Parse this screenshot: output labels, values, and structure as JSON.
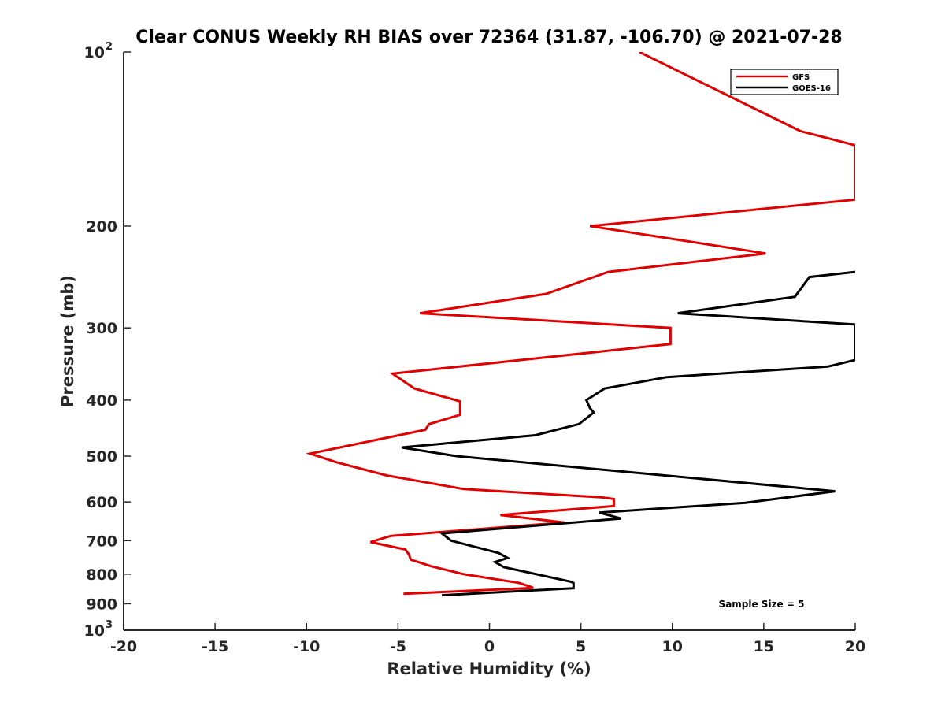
{
  "chart_data": {
    "type": "line",
    "title": "Clear CONUS Weekly RH BIAS over 72364 (31.87, -106.70) @ 2021-07-28",
    "xlabel": "Relative Humidity (%)",
    "ylabel": "Pressure (mb)",
    "xlim": [
      -20,
      20
    ],
    "ylim": [
      100,
      1000
    ],
    "y_scale": "log",
    "y_reversed": true,
    "grid": false,
    "legend_position": "top-right",
    "x_ticks": [
      "-20",
      "-15",
      "-10",
      "-5",
      "0",
      "5",
      "10",
      "15",
      "20"
    ],
    "y_ticks": [
      {
        "value": 100,
        "label": "10",
        "sup": "2"
      },
      {
        "value": 200,
        "label": "200",
        "sup": ""
      },
      {
        "value": 300,
        "label": "300",
        "sup": ""
      },
      {
        "value": 400,
        "label": "400",
        "sup": ""
      },
      {
        "value": 500,
        "label": "500",
        "sup": ""
      },
      {
        "value": 600,
        "label": "600",
        "sup": ""
      },
      {
        "value": 700,
        "label": "700",
        "sup": ""
      },
      {
        "value": 800,
        "label": "800",
        "sup": ""
      },
      {
        "value": 900,
        "label": "900",
        "sup": ""
      },
      {
        "value": 1000,
        "label": "10",
        "sup": "3"
      }
    ],
    "annotation": "Sample Size = 5",
    "series": [
      {
        "name": "GFS",
        "color": "#e00000",
        "points": [
          [
            8.2,
            100
          ],
          [
            17.0,
            137
          ],
          [
            20.0,
            145
          ],
          [
            20.0,
            180
          ],
          [
            5.5,
            200
          ],
          [
            15.1,
            223
          ],
          [
            6.5,
            240
          ],
          [
            3.1,
            262
          ],
          [
            -3.8,
            283
          ],
          [
            9.9,
            300
          ],
          [
            9.9,
            320
          ],
          [
            -5.3,
            360
          ],
          [
            -4.1,
            382
          ],
          [
            -1.6,
            402
          ],
          [
            -1.6,
            424
          ],
          [
            -3.3,
            440
          ],
          [
            -3.5,
            450
          ],
          [
            -9.8,
            495
          ],
          [
            -8.4,
            512
          ],
          [
            -5.6,
            540
          ],
          [
            -1.4,
            570
          ],
          [
            6.1,
            589
          ],
          [
            6.8,
            593
          ],
          [
            6.8,
            610
          ],
          [
            0.6,
            632
          ],
          [
            4.1,
            651
          ],
          [
            -5.4,
            687
          ],
          [
            -6.5,
            704
          ],
          [
            -4.6,
            725
          ],
          [
            -4.4,
            740
          ],
          [
            -4.3,
            755
          ],
          [
            -3.2,
            775
          ],
          [
            -1.4,
            800
          ],
          [
            1.6,
            828
          ],
          [
            2.2,
            840
          ],
          [
            2.4,
            845
          ],
          [
            -4.7,
            865
          ]
        ]
      },
      {
        "name": "GOES-16",
        "color": "#000000",
        "points": [
          [
            20.0,
            240
          ],
          [
            17.5,
            245
          ],
          [
            16.7,
            265
          ],
          [
            10.3,
            283
          ],
          [
            20.0,
            296
          ],
          [
            20.0,
            341
          ],
          [
            18.5,
            350
          ],
          [
            9.7,
            365
          ],
          [
            6.3,
            382
          ],
          [
            5.3,
            400
          ],
          [
            5.5,
            413
          ],
          [
            5.7,
            420
          ],
          [
            4.9,
            440
          ],
          [
            2.5,
            460
          ],
          [
            -4.8,
            483
          ],
          [
            -1.8,
            500
          ],
          [
            18.9,
            575
          ],
          [
            14.0,
            602
          ],
          [
            6.0,
            626
          ],
          [
            7.2,
            641
          ],
          [
            -2.6,
            680
          ],
          [
            -2.1,
            700
          ],
          [
            0.5,
            735
          ],
          [
            1.0,
            750
          ],
          [
            0.3,
            762
          ],
          [
            0.8,
            778
          ],
          [
            4.5,
            825
          ],
          [
            4.6,
            829
          ],
          [
            4.6,
            846
          ],
          [
            -2.6,
            870
          ]
        ]
      }
    ]
  }
}
